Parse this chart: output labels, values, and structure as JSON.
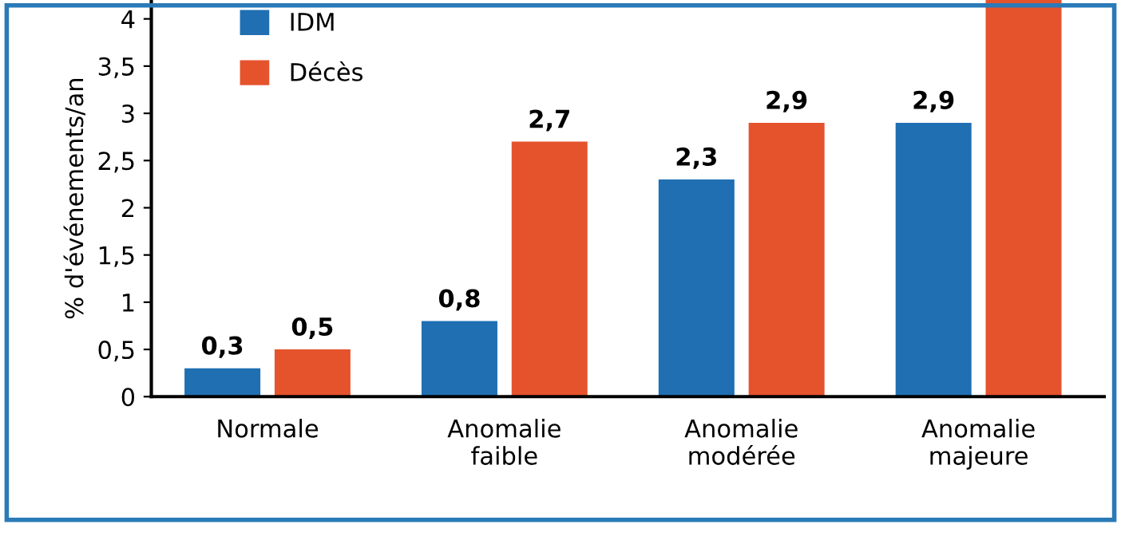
{
  "chart_data": {
    "type": "bar",
    "ylabel": "% d'événements/an",
    "categories": [
      "Normale",
      "Anomalie\nfaible",
      "Anomalie\nmodérée",
      "Anomalie\nmajeure"
    ],
    "series": [
      {
        "name": "IDM",
        "color": "#1f6fb2",
        "values": [
          0.3,
          0.8,
          2.3,
          2.9
        ],
        "value_labels": [
          "0,3",
          "0,8",
          "2,3",
          "2,9"
        ]
      },
      {
        "name": "Décès",
        "color": "#e5532d",
        "values": [
          0.5,
          2.7,
          2.9,
          4.2
        ],
        "value_labels": [
          "0,5",
          "2,7",
          "2,9",
          null
        ]
      }
    ],
    "ylim": [
      0,
      4.2
    ],
    "yticks": [
      {
        "value": 0,
        "label": "0"
      },
      {
        "value": 0.5,
        "label": "0,5"
      },
      1,
      {
        "value": 1.5,
        "label": "1,5"
      },
      2,
      {
        "value": 2.5,
        "label": "2,5"
      },
      3,
      {
        "value": 3.5,
        "label": "3,5"
      },
      4
    ],
    "grid": false,
    "legend": "top left"
  }
}
